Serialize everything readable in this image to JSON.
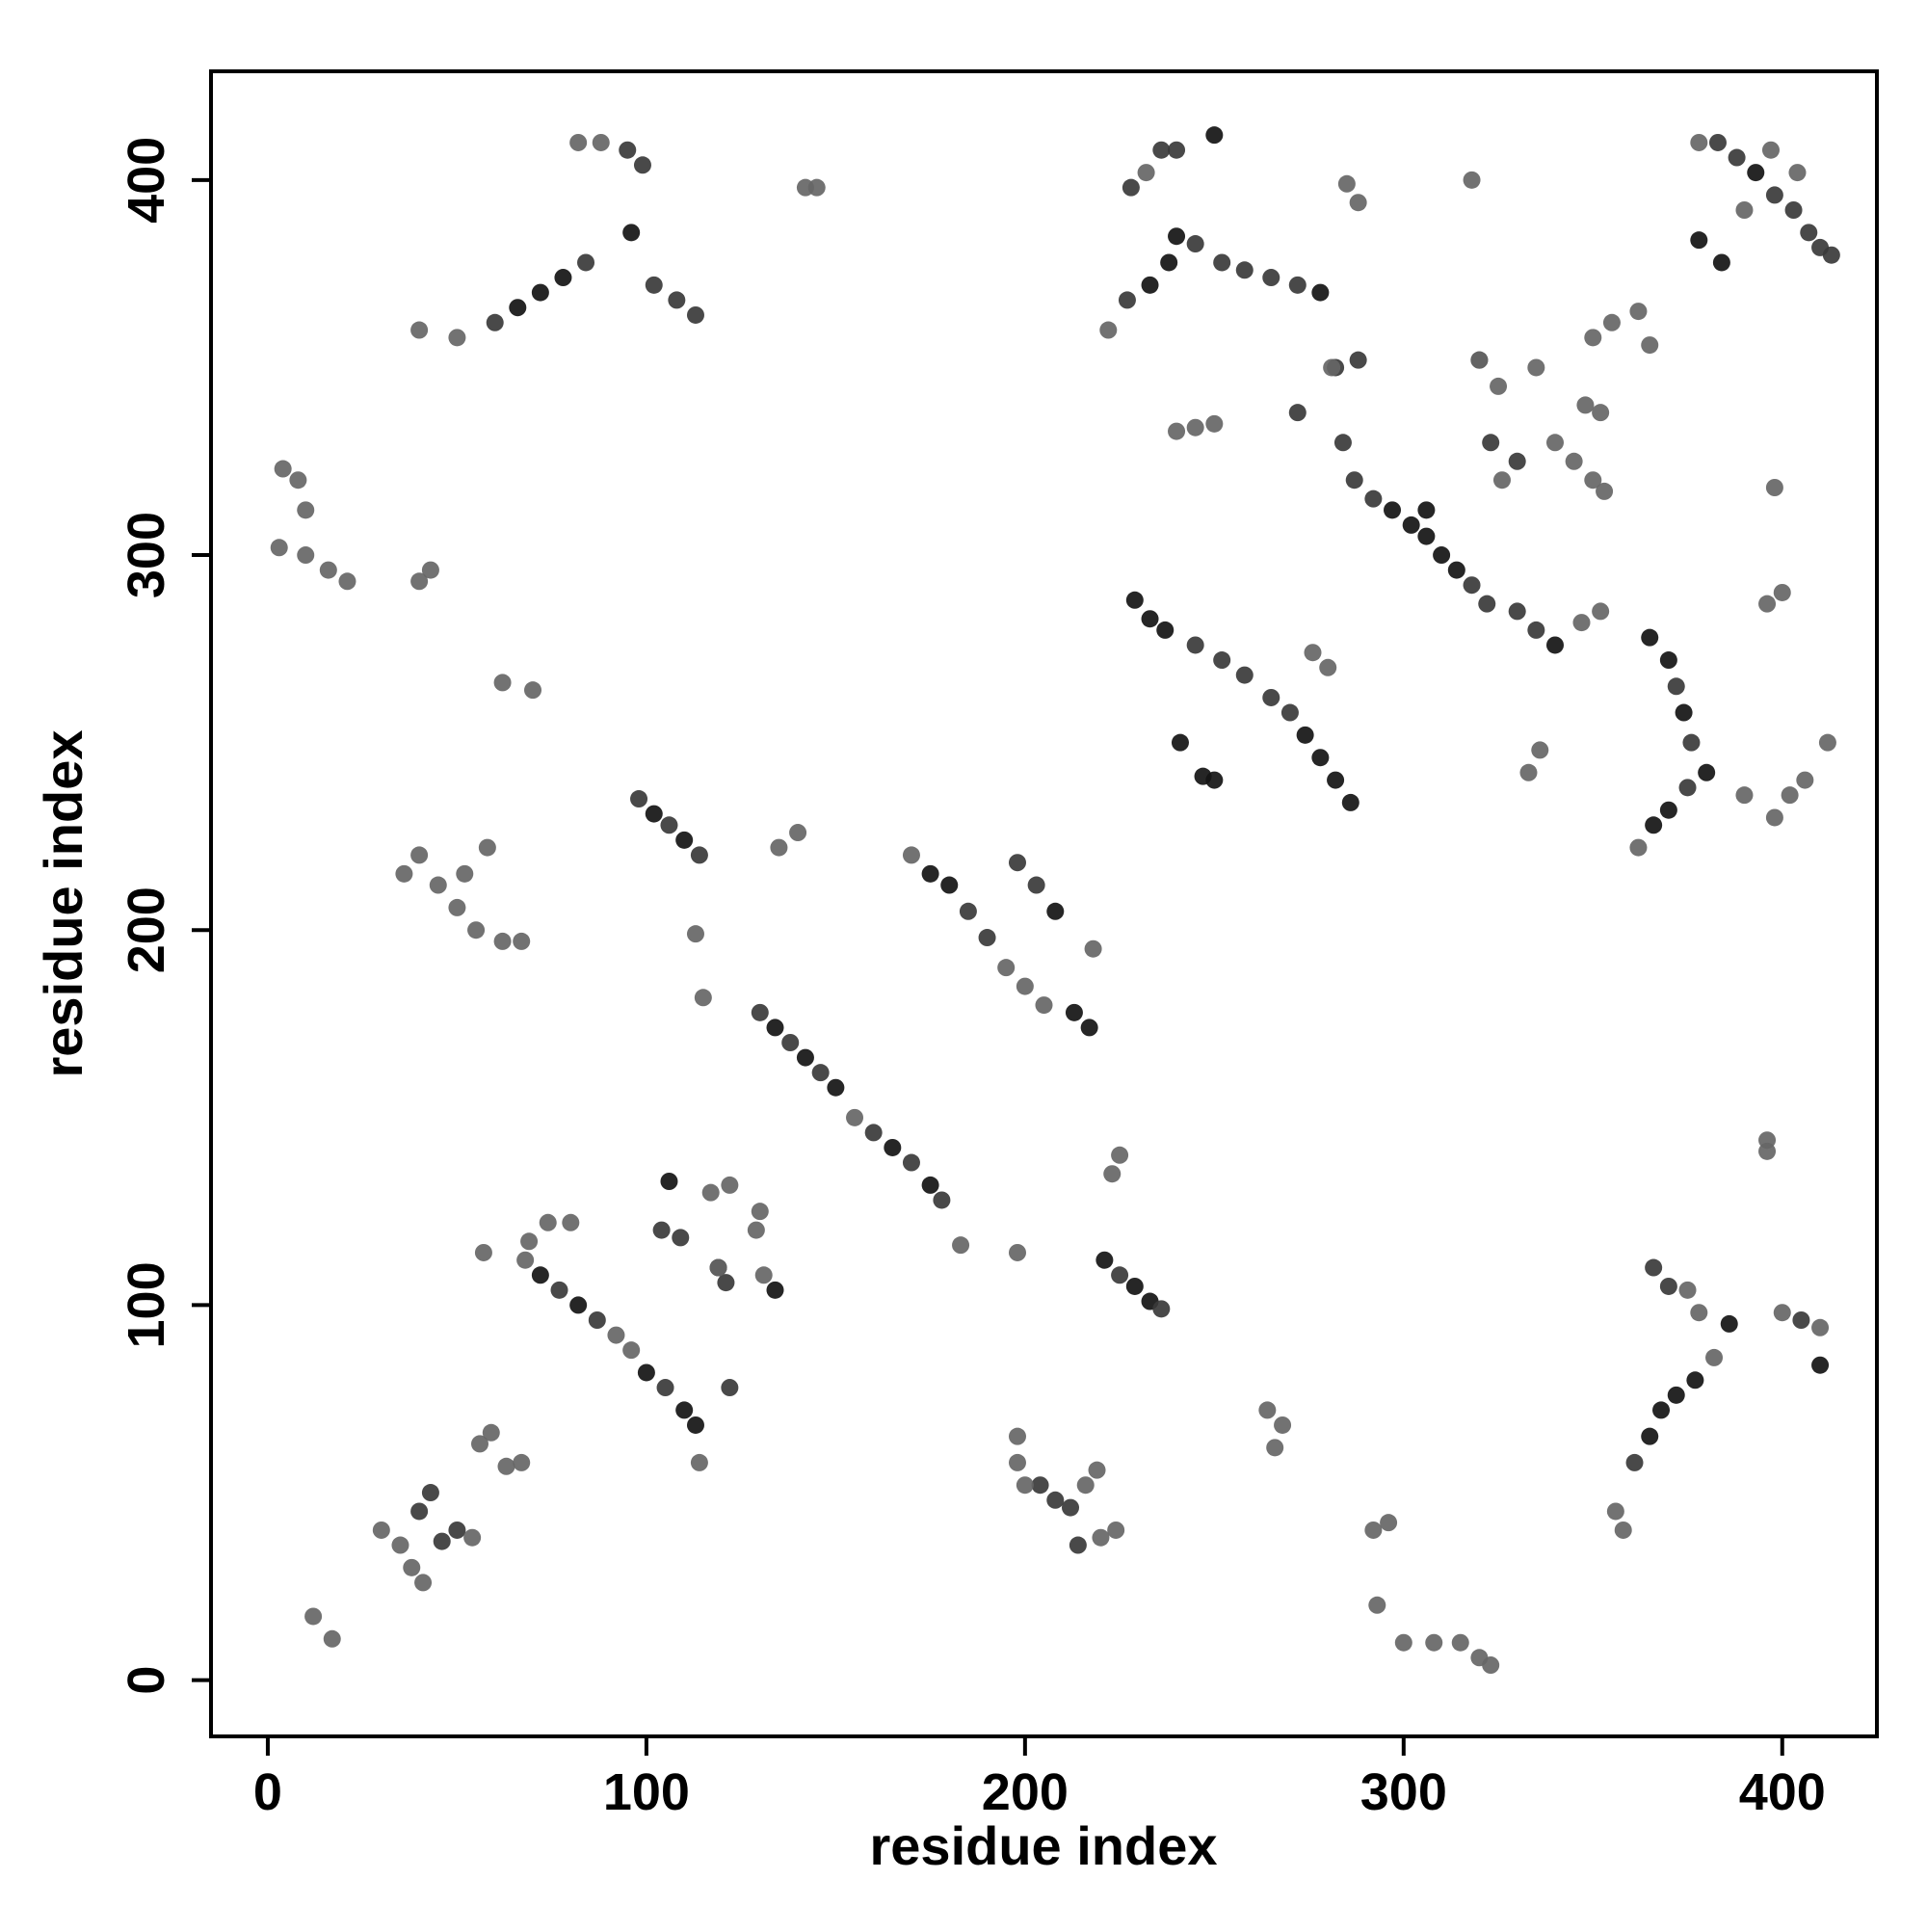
{
  "chart_data": {
    "type": "scatter",
    "xlabel": "residue index",
    "ylabel": "residue index",
    "xlim": [
      -15,
      425
    ],
    "ylim": [
      -15,
      429
    ],
    "xticks": [
      0,
      100,
      200,
      300,
      400
    ],
    "yticks": [
      0,
      100,
      200,
      300,
      400
    ],
    "series": [
      {
        "color": "#141414",
        "x": [
          134,
          142,
          150,
          165,
          175,
          102,
          110,
          175,
          180,
          208,
          213,
          217,
          66,
          72,
          78,
          96,
          72,
          82,
          100,
          110,
          113,
          106,
          119,
          134,
          229,
          233,
          237,
          274,
          278,
          282,
          286,
          241,
          247,
          250,
          297,
          302,
          306,
          310,
          314,
          306,
          233,
          238,
          240,
          250,
          278,
          340,
          365,
          370,
          374,
          380,
          366,
          370,
          378,
          384,
          393,
          365,
          368,
          372,
          377,
          233,
          221,
          229,
          386,
          410
        ],
        "values": [
          174,
          166,
          158,
          142,
          132,
          231,
          224,
          215,
          212,
          205,
          178,
          174,
          366,
          370,
          374,
          386,
          108,
          100,
          82,
          72,
          68,
          133,
          110,
          104,
          288,
          283,
          280,
          252,
          246,
          240,
          234,
          250,
          241,
          240,
          312,
          308,
          305,
          300,
          296,
          312,
          372,
          378,
          385,
          412,
          370,
          276,
          278,
          272,
          258,
          242,
          228,
          232,
          384,
          378,
          402,
          65,
          72,
          76,
          80,
          101,
          112,
          105,
          95,
          84
        ]
      },
      {
        "color": "#3a3a3a",
        "x": [
          130,
          138,
          146,
          160,
          170,
          178,
          98,
          106,
          114,
          185,
          190,
          198,
          203,
          60,
          84,
          95,
          99,
          102,
          108,
          113,
          77,
          87,
          105,
          122,
          104,
          109,
          121,
          40,
          43,
          46,
          50,
          204,
          208,
          212,
          214,
          228,
          236,
          240,
          227,
          245,
          252,
          258,
          265,
          272,
          272,
          284,
          287,
          292,
          318,
          322,
          245,
          252,
          258,
          265,
          270,
          282,
          288,
          320,
          330,
          323,
          330,
          335,
          372,
          376,
          375,
          383,
          388,
          398,
          403,
          407,
          410,
          413,
          361,
          366,
          370,
          225,
          236,
          405
        ],
        "values": [
          178,
          170,
          162,
          146,
          138,
          128,
          235,
          228,
          220,
          205,
          198,
          218,
          212,
          362,
          378,
          408,
          404,
          372,
          368,
          364,
          104,
          96,
          78,
          78,
          120,
          118,
          106,
          45,
          50,
          37,
          40,
          52,
          48,
          46,
          36,
          398,
          408,
          408,
          368,
          383,
          378,
          376,
          374,
          372,
          338,
          330,
          320,
          315,
          292,
          287,
          276,
          272,
          268,
          262,
          258,
          350,
          352,
          352,
          325,
          330,
          285,
          280,
          265,
          250,
          238,
          410,
          406,
          396,
          392,
          386,
          382,
          380,
          58,
          110,
          105,
          108,
          99,
          96
        ]
      },
      {
        "color": "#666666",
        "x": [
          155,
          183,
          198,
          223,
          225,
          113,
          115,
          135,
          140,
          170,
          195,
          200,
          205,
          198,
          218,
          40,
          50,
          82,
          88,
          3,
          10,
          16,
          21,
          4,
          8,
          10,
          40,
          43,
          62,
          70,
          36,
          40,
          45,
          50,
          55,
          62,
          67,
          52,
          58,
          68,
          69,
          74,
          80,
          92,
          96,
          119,
          117,
          122,
          129,
          130,
          131,
          56,
          59,
          63,
          67,
          57,
          114,
          30,
          35,
          38,
          41,
          54,
          12,
          17,
          142,
          145,
          198,
          200,
          216,
          219,
          220,
          224,
          264,
          268,
          266,
          292,
          296,
          293,
          300,
          308,
          315,
          320,
          323,
          232,
          222,
          240,
          245,
          250,
          285,
          288,
          318,
          281,
          276,
          280,
          320,
          325,
          340,
          345,
          350,
          353,
          335,
          350,
          355,
          362,
          365,
          326,
          348,
          352,
          347,
          352,
          333,
          336,
          362,
          390,
          398,
          402,
          406,
          412,
          378,
          390,
          397,
          404,
          396,
          400,
          398,
          396,
          396,
          356,
          358,
          382,
          375,
          378,
          400,
          410
        ],
        "values": [
          150,
          116,
          114,
          135,
          140,
          199,
          182,
          222,
          226,
          220,
          190,
          185,
          180,
          65,
          195,
          360,
          358,
          410,
          410,
          302,
          300,
          296,
          293,
          323,
          320,
          312,
          293,
          296,
          266,
          264,
          215,
          220,
          212,
          206,
          200,
          197,
          197,
          215,
          222,
          112,
          117,
          122,
          122,
          92,
          88,
          110,
          130,
          132,
          120,
          125,
          108,
          63,
          66,
          57,
          58,
          114,
          58,
          40,
          36,
          30,
          26,
          38,
          17,
          11,
          398,
          398,
          58,
          52,
          52,
          56,
          38,
          40,
          72,
          68,
          62,
          40,
          42,
          20,
          10,
          10,
          10,
          6,
          4,
          402,
          360,
          333,
          334,
          335,
          399,
          394,
          400,
          350,
          274,
          270,
          352,
          345,
          330,
          325,
          320,
          317,
          350,
          358,
          362,
          365,
          356,
          320,
          340,
          338,
          282,
          285,
          242,
          248,
          222,
          236,
          230,
          236,
          240,
          250,
          410,
          392,
          408,
          402,
          287,
          290,
          318,
          144,
          141,
          45,
          40,
          86,
          104,
          98,
          98,
          94
        ]
      }
    ]
  }
}
